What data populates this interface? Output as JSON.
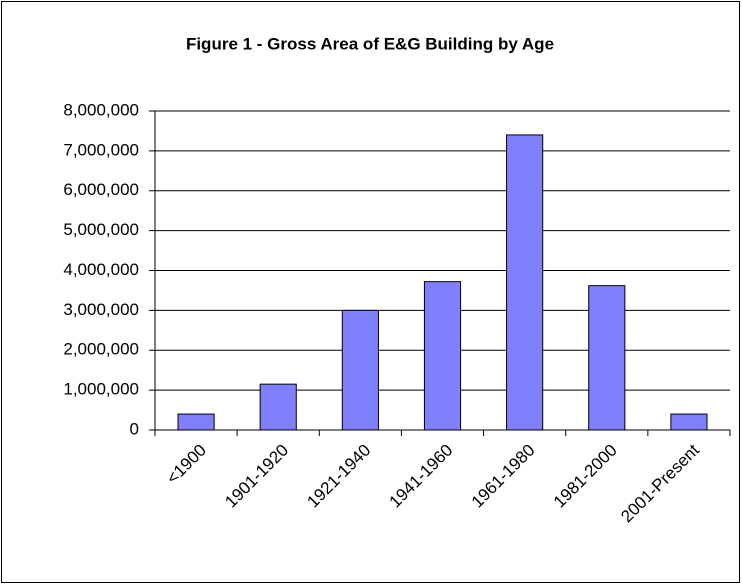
{
  "chart_data": {
    "type": "bar",
    "title": "Figure 1 - Gross Area of E&G Building by Age",
    "categories": [
      "<1900",
      "1901-1920",
      "1921-1940",
      "1941-1960",
      "1961-1980",
      "1981-2000",
      "2001-Present"
    ],
    "values": [
      400000,
      1150000,
      3000000,
      3720000,
      7400000,
      3620000,
      400000
    ],
    "color": "#8080ff",
    "ylim": [
      0,
      8000000
    ],
    "yticks": [
      0,
      {
        "value": 1000000,
        "label": "1,000,000"
      },
      {
        "value": 2000000,
        "label": "2,000,000"
      },
      {
        "value": 3000000,
        "label": "3,000,000"
      },
      {
        "value": 4000000,
        "label": "4,000,000"
      },
      {
        "value": 5000000,
        "label": "5,000,000"
      },
      {
        "value": 6000000,
        "label": "6,000,000"
      },
      {
        "value": 7000000,
        "label": "7,000,000"
      },
      {
        "value": 8000000,
        "label": "8,000,000"
      }
    ],
    "grid": true
  }
}
